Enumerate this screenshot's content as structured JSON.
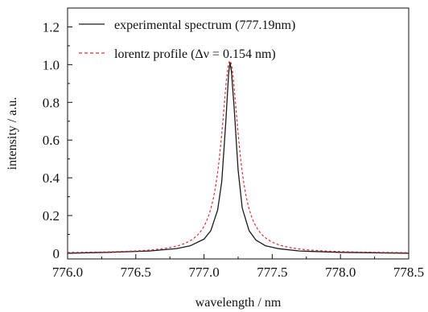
{
  "chart_data": {
    "type": "line",
    "xlabel": "wavelength / nm",
    "ylabel": "intensity / a.u.",
    "xlim": [
      776.0,
      778.5
    ],
    "ylim": [
      -0.03,
      1.3
    ],
    "x_ticks": [
      776.0,
      776.5,
      777.0,
      777.5,
      778.0,
      778.5
    ],
    "x_tick_labels": [
      "776.0",
      "776.5",
      "777.0",
      "777.5",
      "778.0",
      "778.5"
    ],
    "y_ticks": [
      0,
      0.2,
      0.4,
      0.6,
      0.8,
      1.0,
      1.2
    ],
    "y_tick_labels": [
      "0",
      "0.2",
      "0.4",
      "0.6",
      "0.8",
      "1.0",
      "1.2"
    ],
    "grid": false,
    "legend_position": "top-left",
    "series": [
      {
        "name": "experimental spectrum (777.19nm)",
        "color": "#1a1a1a",
        "style": "solid",
        "x": [
          776.0,
          776.3,
          776.6,
          776.8,
          776.9,
          777.0,
          777.05,
          777.1,
          777.13,
          777.16,
          777.18,
          777.19,
          777.2,
          777.22,
          777.25,
          777.28,
          777.33,
          777.38,
          777.45,
          777.55,
          777.7,
          778.0,
          778.5
        ],
        "values": [
          0.0,
          0.005,
          0.012,
          0.025,
          0.04,
          0.075,
          0.12,
          0.23,
          0.38,
          0.7,
          0.95,
          1.01,
          0.97,
          0.78,
          0.44,
          0.24,
          0.12,
          0.07,
          0.04,
          0.024,
          0.012,
          0.005,
          0.0
        ]
      },
      {
        "name": "lorentz profile",
        "legend_label": "lorentz profile (Δν = 0.154 nm)",
        "color": "#d6303a",
        "style": "dashed",
        "center": 777.19,
        "fwhm": 0.154,
        "peak": 1.02
      }
    ]
  }
}
